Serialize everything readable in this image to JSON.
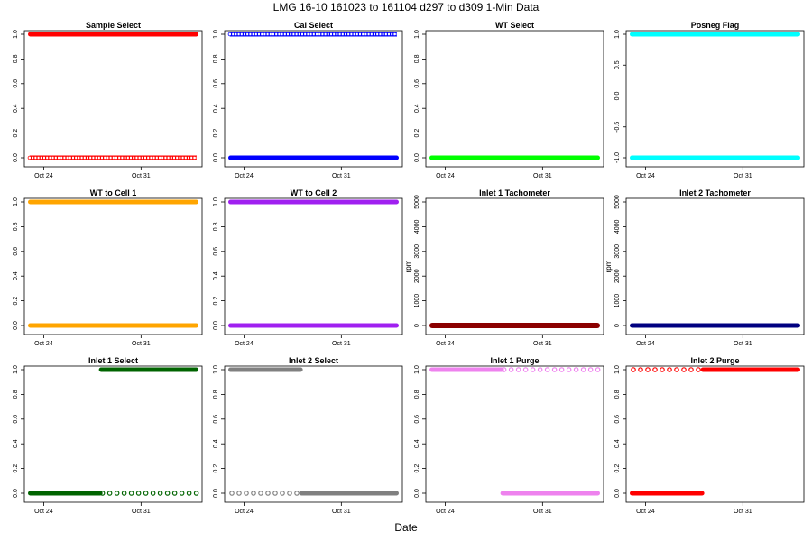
{
  "main_title": "LMG   16-10     161023 to 161104     d297 to d309   1-Min Data",
  "x_axis_label": "Date",
  "x_ticks": [
    "Oct 24",
    "Oct 31"
  ],
  "chart_data": [
    {
      "type": "scatter",
      "title": "Sample Select",
      "color": "#ff0000",
      "ylabel": "",
      "ylim": [
        0,
        1
      ],
      "y_ticks": [
        0.0,
        0.2,
        0.4,
        0.6,
        0.8,
        1.0
      ],
      "y_tick_labels": [
        "0.0",
        "0.2",
        "0.4",
        "0.6",
        "0.8",
        "1.0"
      ],
      "x_ticks": [
        "Oct 24",
        "Oct 31"
      ],
      "xlim_days": [
        23,
        35
      ],
      "series": [
        {
          "y": 1,
          "from_day": 23,
          "to_day": 35,
          "style": "dense"
        },
        {
          "y": 0,
          "from_day": 23,
          "to_day": 35,
          "style": "open"
        }
      ]
    },
    {
      "type": "scatter",
      "title": "Cal Select",
      "color": "#0000ff",
      "ylabel": "",
      "ylim": [
        0,
        1
      ],
      "y_ticks": [
        0.0,
        0.2,
        0.4,
        0.6,
        0.8,
        1.0
      ],
      "y_tick_labels": [
        "0.0",
        "0.2",
        "0.4",
        "0.6",
        "0.8",
        "1.0"
      ],
      "x_ticks": [
        "Oct 24",
        "Oct 31"
      ],
      "xlim_days": [
        23,
        35
      ],
      "series": [
        {
          "y": 1,
          "from_day": 23,
          "to_day": 35,
          "style": "open"
        },
        {
          "y": 0,
          "from_day": 23,
          "to_day": 35,
          "style": "dense"
        }
      ]
    },
    {
      "type": "scatter",
      "title": "WT Select",
      "color": "#00ff00",
      "ylabel": "",
      "ylim": [
        0,
        1
      ],
      "y_ticks": [
        0.0,
        0.2,
        0.4,
        0.6,
        0.8,
        1.0
      ],
      "y_tick_labels": [
        "0.0",
        "0.2",
        "0.4",
        "0.6",
        "0.8",
        "1.0"
      ],
      "x_ticks": [
        "Oct 24",
        "Oct 31"
      ],
      "xlim_days": [
        23,
        35
      ],
      "series": [
        {
          "y": 0,
          "from_day": 23,
          "to_day": 35,
          "style": "dense"
        }
      ]
    },
    {
      "type": "scatter",
      "title": "Posneg Flag",
      "color": "#00ffff",
      "ylabel": "",
      "ylim": [
        -1,
        1
      ],
      "y_ticks": [
        -1.0,
        -0.5,
        0.0,
        0.5,
        1.0
      ],
      "y_tick_labels": [
        "-1.0",
        "-0.5",
        "0.0",
        "0.5",
        "1.0"
      ],
      "x_ticks": [
        "Oct 24",
        "Oct 31"
      ],
      "xlim_days": [
        23,
        35
      ],
      "series": [
        {
          "y": 1,
          "from_day": 23,
          "to_day": 35,
          "style": "dense"
        },
        {
          "y": -1,
          "from_day": 23,
          "to_day": 35,
          "style": "dense"
        }
      ]
    },
    {
      "type": "scatter",
      "title": "WT to Cell 1",
      "color": "#ffa500",
      "ylabel": "",
      "ylim": [
        0,
        1
      ],
      "y_ticks": [
        0.0,
        0.2,
        0.4,
        0.6,
        0.8,
        1.0
      ],
      "y_tick_labels": [
        "0.0",
        "0.2",
        "0.4",
        "0.6",
        "0.8",
        "1.0"
      ],
      "x_ticks": [
        "Oct 24",
        "Oct 31"
      ],
      "xlim_days": [
        23,
        35
      ],
      "series": [
        {
          "y": 1,
          "from_day": 23,
          "to_day": 35,
          "style": "dense"
        },
        {
          "y": 0,
          "from_day": 23,
          "to_day": 35,
          "style": "dense"
        }
      ]
    },
    {
      "type": "scatter",
      "title": "WT to Cell 2",
      "color": "#a020f0",
      "ylabel": "",
      "ylim": [
        0,
        1
      ],
      "y_ticks": [
        0.0,
        0.2,
        0.4,
        0.6,
        0.8,
        1.0
      ],
      "y_tick_labels": [
        "0.0",
        "0.2",
        "0.4",
        "0.6",
        "0.8",
        "1.0"
      ],
      "x_ticks": [
        "Oct 24",
        "Oct 31"
      ],
      "xlim_days": [
        23,
        35
      ],
      "series": [
        {
          "y": 1,
          "from_day": 23,
          "to_day": 35,
          "style": "dense"
        },
        {
          "y": 0,
          "from_day": 23,
          "to_day": 35,
          "style": "dense"
        }
      ]
    },
    {
      "type": "scatter",
      "title": "Inlet 1 Tachometer",
      "color": "#8b0000",
      "ylabel": "rpm",
      "ylim": [
        0,
        5000
      ],
      "y_ticks": [
        0,
        1000,
        2000,
        3000,
        4000,
        5000
      ],
      "y_tick_labels": [
        "0",
        "1000",
        "2000",
        "3000",
        "4000",
        "5000"
      ],
      "x_ticks": [
        "Oct 24",
        "Oct 31"
      ],
      "xlim_days": [
        23,
        35
      ],
      "series": [
        {
          "y": 0,
          "from_day": 23,
          "to_day": 35,
          "style": "thick"
        }
      ]
    },
    {
      "type": "scatter",
      "title": "Inlet 2 Tachometer",
      "color": "#000080",
      "ylabel": "rpm",
      "ylim": [
        0,
        5000
      ],
      "y_ticks": [
        0,
        1000,
        2000,
        3000,
        4000,
        5000
      ],
      "y_tick_labels": [
        "0",
        "1000",
        "2000",
        "3000",
        "4000",
        "5000"
      ],
      "x_ticks": [
        "Oct 24",
        "Oct 31"
      ],
      "xlim_days": [
        23,
        35
      ],
      "series": [
        {
          "y": 0,
          "from_day": 23,
          "to_day": 35,
          "style": "dense"
        }
      ]
    },
    {
      "type": "scatter",
      "title": "Inlet 1 Select",
      "color": "#006400",
      "ylabel": "",
      "ylim": [
        0,
        1
      ],
      "y_ticks": [
        0.0,
        0.2,
        0.4,
        0.6,
        0.8,
        1.0
      ],
      "y_tick_labels": [
        "0.0",
        "0.2",
        "0.4",
        "0.6",
        "0.8",
        "1.0"
      ],
      "x_ticks": [
        "Oct 24",
        "Oct 31"
      ],
      "xlim_days": [
        23,
        35
      ],
      "series": [
        {
          "y": 0,
          "from_day": 23,
          "to_day": 28.1,
          "style": "dense"
        },
        {
          "y": 1,
          "from_day": 28.1,
          "to_day": 35,
          "style": "dense"
        },
        {
          "y": 0,
          "from_day": 28.1,
          "to_day": 35,
          "style": "sparse"
        }
      ]
    },
    {
      "type": "scatter",
      "title": "Inlet 2 Select",
      "color": "#808080",
      "ylabel": "",
      "ylim": [
        0,
        1
      ],
      "y_ticks": [
        0.0,
        0.2,
        0.4,
        0.6,
        0.8,
        1.0
      ],
      "y_tick_labels": [
        "0.0",
        "0.2",
        "0.4",
        "0.6",
        "0.8",
        "1.0"
      ],
      "x_ticks": [
        "Oct 24",
        "Oct 31"
      ],
      "xlim_days": [
        23,
        35
      ],
      "series": [
        {
          "y": 1,
          "from_day": 23,
          "to_day": 28.1,
          "style": "dense"
        },
        {
          "y": 0,
          "from_day": 23,
          "to_day": 28.1,
          "style": "sparse"
        },
        {
          "y": 0,
          "from_day": 28.1,
          "to_day": 35,
          "style": "dense"
        }
      ]
    },
    {
      "type": "scatter",
      "title": "Inlet 1 Purge",
      "color": "#ee82ee",
      "ylabel": "",
      "ylim": [
        0,
        1
      ],
      "y_ticks": [
        0.0,
        0.2,
        0.4,
        0.6,
        0.8,
        1.0
      ],
      "y_tick_labels": [
        "0.0",
        "0.2",
        "0.4",
        "0.6",
        "0.8",
        "1.0"
      ],
      "x_ticks": [
        "Oct 24",
        "Oct 31"
      ],
      "xlim_days": [
        23,
        35
      ],
      "series": [
        {
          "y": 1,
          "from_day": 23,
          "to_day": 28.1,
          "style": "dense"
        },
        {
          "y": 1,
          "from_day": 28.1,
          "to_day": 35,
          "style": "sparse"
        },
        {
          "y": 0,
          "from_day": 28.1,
          "to_day": 35,
          "style": "dense"
        }
      ]
    },
    {
      "type": "scatter",
      "title": "Inlet 2 Purge",
      "color": "#ff0000",
      "ylabel": "",
      "ylim": [
        0,
        1
      ],
      "y_ticks": [
        0.0,
        0.2,
        0.4,
        0.6,
        0.8,
        1.0
      ],
      "y_tick_labels": [
        "0.0",
        "0.2",
        "0.4",
        "0.6",
        "0.8",
        "1.0"
      ],
      "x_ticks": [
        "Oct 24",
        "Oct 31"
      ],
      "xlim_days": [
        23,
        35
      ],
      "series": [
        {
          "y": 1,
          "from_day": 23,
          "to_day": 28.1,
          "style": "sparse"
        },
        {
          "y": 0,
          "from_day": 23,
          "to_day": 28.1,
          "style": "dense"
        },
        {
          "y": 1,
          "from_day": 28.1,
          "to_day": 35,
          "style": "dense"
        }
      ]
    }
  ]
}
